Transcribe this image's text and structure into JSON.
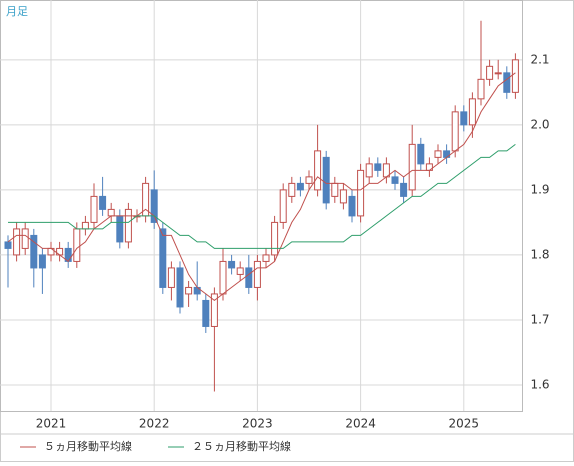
{
  "chart_data": {
    "type": "candlestick",
    "subtitle": "月足",
    "categories": [
      null,
      null,
      null,
      null,
      null,
      "2021",
      null,
      null,
      null,
      null,
      null,
      null,
      null,
      null,
      null,
      null,
      null,
      "2022",
      null,
      null,
      null,
      null,
      null,
      null,
      null,
      null,
      null,
      null,
      null,
      "2023",
      null,
      null,
      null,
      null,
      null,
      null,
      null,
      null,
      null,
      null,
      null,
      "2024",
      null,
      null,
      null,
      null,
      null,
      null,
      null,
      null,
      null,
      null,
      null,
      "2025",
      null,
      null,
      null,
      null,
      null,
      null
    ],
    "open": [
      1.82,
      1.8,
      1.81,
      1.83,
      1.8,
      1.8,
      1.8,
      1.81,
      1.79,
      1.84,
      1.85,
      1.89,
      1.86,
      1.86,
      1.82,
      1.86,
      1.86,
      1.9,
      1.84,
      1.75,
      1.78,
      1.74,
      1.75,
      1.73,
      1.69,
      1.74,
      1.79,
      1.77,
      1.78,
      1.75,
      1.79,
      1.8,
      1.85,
      1.89,
      1.91,
      1.91,
      1.9,
      1.95,
      1.89,
      1.88,
      1.89,
      1.86,
      1.92,
      1.94,
      1.92,
      1.92,
      1.91,
      1.9,
      1.97,
      1.93,
      1.95,
      1.96,
      1.96,
      2.02,
      2.0,
      2.04,
      2.07,
      2.08,
      2.08,
      2.05
    ],
    "high": [
      1.83,
      1.85,
      1.85,
      1.84,
      1.81,
      1.82,
      1.82,
      1.82,
      1.85,
      1.86,
      1.91,
      1.92,
      1.88,
      1.87,
      1.88,
      1.87,
      1.92,
      1.93,
      1.85,
      1.79,
      1.79,
      1.76,
      1.79,
      1.74,
      1.75,
      1.81,
      1.8,
      1.79,
      1.8,
      1.8,
      1.81,
      1.86,
      1.91,
      1.92,
      1.92,
      1.93,
      2.0,
      1.96,
      1.92,
      1.91,
      1.9,
      1.94,
      1.95,
      1.95,
      1.95,
      1.93,
      1.92,
      2.0,
      1.98,
      1.95,
      1.97,
      1.97,
      2.03,
      2.03,
      2.05,
      2.16,
      2.1,
      2.1,
      2.09,
      2.11
    ],
    "low": [
      1.75,
      1.79,
      1.8,
      1.75,
      1.74,
      1.79,
      1.79,
      1.78,
      1.78,
      1.83,
      1.84,
      1.86,
      1.85,
      1.81,
      1.81,
      1.85,
      1.85,
      1.84,
      1.74,
      1.73,
      1.71,
      1.72,
      1.73,
      1.68,
      1.59,
      1.73,
      1.77,
      1.76,
      1.74,
      1.73,
      1.78,
      1.79,
      1.84,
      1.88,
      1.89,
      1.9,
      1.89,
      1.87,
      1.88,
      1.87,
      1.85,
      1.85,
      1.91,
      1.92,
      1.91,
      1.9,
      1.88,
      1.89,
      1.93,
      1.92,
      1.94,
      1.94,
      1.95,
      1.99,
      1.98,
      2.03,
      2.06,
      2.07,
      2.04,
      2.04
    ],
    "close": [
      1.81,
      1.84,
      1.84,
      1.78,
      1.78,
      1.81,
      1.81,
      1.79,
      1.84,
      1.85,
      1.89,
      1.87,
      1.87,
      1.82,
      1.87,
      1.86,
      1.91,
      1.85,
      1.75,
      1.78,
      1.72,
      1.75,
      1.74,
      1.69,
      1.74,
      1.79,
      1.78,
      1.78,
      1.75,
      1.79,
      1.8,
      1.85,
      1.9,
      1.91,
      1.9,
      1.92,
      1.96,
      1.88,
      1.91,
      1.9,
      1.86,
      1.93,
      1.94,
      1.93,
      1.94,
      1.91,
      1.89,
      1.97,
      1.94,
      1.94,
      1.96,
      1.95,
      2.02,
      2.0,
      2.04,
      2.07,
      2.09,
      2.08,
      2.05,
      2.1
    ],
    "up_color": "#c0504d",
    "down_color": "#4f81bd",
    "series": [
      {
        "name": "５ヵ月移動平均線",
        "color": "#c0504d",
        "values": [
          1.82,
          1.83,
          1.83,
          1.82,
          1.81,
          1.81,
          1.8,
          1.79,
          1.81,
          1.82,
          1.84,
          1.85,
          1.86,
          1.86,
          1.86,
          1.86,
          1.87,
          1.86,
          1.83,
          1.83,
          1.8,
          1.77,
          1.75,
          1.74,
          1.73,
          1.74,
          1.75,
          1.76,
          1.77,
          1.78,
          1.78,
          1.79,
          1.82,
          1.85,
          1.87,
          1.9,
          1.92,
          1.91,
          1.91,
          1.91,
          1.9,
          1.9,
          1.91,
          1.91,
          1.92,
          1.93,
          1.92,
          1.93,
          1.93,
          1.93,
          1.94,
          1.95,
          1.96,
          1.97,
          1.99,
          2.02,
          2.04,
          2.06,
          2.07,
          2.08
        ]
      },
      {
        "name": "２５ヵ月移動平均線",
        "color": "#2e9e6b",
        "values": [
          1.85,
          1.85,
          1.85,
          1.85,
          1.85,
          1.85,
          1.85,
          1.85,
          1.84,
          1.84,
          1.84,
          1.84,
          1.85,
          1.85,
          1.85,
          1.86,
          1.86,
          1.86,
          1.85,
          1.84,
          1.83,
          1.83,
          1.82,
          1.82,
          1.81,
          1.81,
          1.81,
          1.81,
          1.81,
          1.81,
          1.81,
          1.81,
          1.81,
          1.82,
          1.82,
          1.82,
          1.82,
          1.82,
          1.82,
          1.82,
          1.83,
          1.83,
          1.84,
          1.85,
          1.86,
          1.87,
          1.88,
          1.89,
          1.89,
          1.9,
          1.91,
          1.91,
          1.92,
          1.93,
          1.94,
          1.95,
          1.95,
          1.96,
          1.96,
          1.97
        ]
      }
    ],
    "ylim": [
      1.56,
      2.192
    ],
    "yticks": [
      1.6,
      1.7,
      1.8,
      1.9,
      {
        "value": 2,
        "label": "2.0"
      },
      2.1
    ],
    "grid": true
  }
}
